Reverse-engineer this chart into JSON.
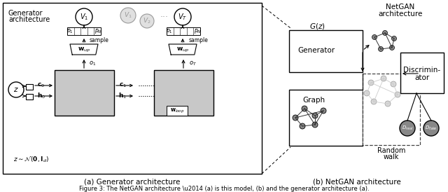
{
  "bg_color": "#ffffff",
  "light_gray": "#c8c8c8",
  "medium_gray": "#999999",
  "node_color": "#888888",
  "node_light": "#bbbbbb",
  "caption_a": "(a) Generator architecture",
  "caption_b": "(b) NetGAN architecture",
  "fig_caption": "Figure 3: The NetGAN architecture — (a) is this model, (b) and the generator architecture (a)."
}
